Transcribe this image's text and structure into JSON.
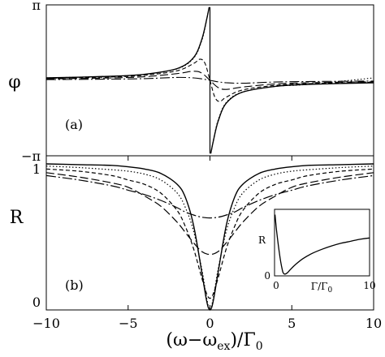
{
  "chart_data": [
    {
      "panel": "top",
      "type": "line",
      "panel_label": "(a)",
      "ylabel": "φ",
      "xlabel": "",
      "xlim": [
        -10,
        10
      ],
      "ylim": [
        -3.1416,
        3.1416
      ],
      "yticks": [
        {
          "value": 3.1416,
          "label": "π"
        },
        {
          "value": -3.1416,
          "label": "−π"
        }
      ],
      "grid": false,
      "legend": "none",
      "series": [
        {
          "style": "dotted",
          "width": 0.15,
          "x": [
            -10,
            -6,
            -4,
            -2,
            -1,
            -0.5,
            -0.25,
            -0.1,
            0.1,
            0.25,
            0.5,
            1,
            2,
            4,
            6,
            10
          ],
          "y": [
            0.1,
            0.17,
            0.25,
            0.48,
            0.92,
            1.65,
            2.36,
            2.89,
            -2.89,
            -2.36,
            -1.65,
            -0.92,
            -0.48,
            -0.25,
            -0.17,
            0.1
          ]
        },
        {
          "style": "solid",
          "width": 0.3,
          "x": [
            -10,
            -6,
            -4,
            -2,
            -1,
            -0.5,
            -0.2,
            -0.05,
            0.05,
            0.2,
            0.5,
            1,
            2,
            4,
            6,
            10
          ],
          "y": [
            0.1,
            0.17,
            0.25,
            0.49,
            0.95,
            1.7,
            2.55,
            3.05,
            -3.05,
            -2.55,
            -1.7,
            -0.95,
            -0.49,
            -0.25,
            -0.17,
            -0.1
          ]
        },
        {
          "style": "dashed",
          "width": 0.8,
          "x": [
            -10,
            -6,
            -4,
            -2,
            -1,
            -0.6,
            -0.3,
            0,
            0.3,
            0.6,
            1,
            2,
            4,
            6,
            10
          ],
          "y": [
            0.08,
            0.14,
            0.21,
            0.4,
            0.7,
            0.88,
            0.7,
            0,
            -0.7,
            -0.88,
            -0.7,
            -0.4,
            -0.21,
            -0.14,
            -0.08
          ]
        },
        {
          "style": "long-dash",
          "width": 1.6,
          "x": [
            -10,
            -6,
            -4,
            -2,
            -1,
            -0.5,
            0,
            0.5,
            1,
            2,
            4,
            6,
            10
          ],
          "y": [
            0.06,
            0.1,
            0.15,
            0.28,
            0.38,
            0.3,
            0,
            -0.3,
            -0.38,
            -0.28,
            -0.15,
            -0.1,
            -0.06
          ]
        },
        {
          "style": "dash-dot",
          "width": 3.0,
          "x": [
            -10,
            -6,
            -4,
            -2,
            -1,
            -0.5,
            0,
            0.5,
            1,
            2,
            4,
            6,
            10
          ],
          "y": [
            0.03,
            0.05,
            0.07,
            0.12,
            0.1,
            0.06,
            0,
            -0.06,
            -0.1,
            -0.12,
            -0.07,
            -0.05,
            -0.03
          ]
        }
      ]
    },
    {
      "panel": "bottom",
      "type": "line",
      "panel_label": "(b)",
      "ylabel": "R",
      "xlabel": "(ω−ω_ex)/Γ_0",
      "xlabel_main": "(ω−ω",
      "xlabel_sub1": "ex",
      "xlabel_mid": ")/Γ",
      "xlabel_sub2": "0",
      "xlim": [
        -10,
        10
      ],
      "ylim": [
        0,
        1
      ],
      "xticks": [
        -10,
        -5,
        0,
        5,
        10
      ],
      "yticks": [
        0,
        1
      ],
      "grid": false,
      "legend": "none",
      "series": [
        {
          "style": "solid",
          "x": [
            -10,
            -8,
            -6,
            -5,
            -4,
            -3,
            -2,
            -1.5,
            -1,
            -0.5,
            -0.2,
            0,
            0.2,
            0.5,
            1,
            1.5,
            2,
            3,
            4,
            5,
            6,
            8,
            10
          ],
          "y": [
            1.0,
            0.995,
            0.99,
            0.98,
            0.965,
            0.935,
            0.86,
            0.77,
            0.58,
            0.26,
            0.06,
            0.0,
            0.06,
            0.26,
            0.58,
            0.77,
            0.86,
            0.935,
            0.965,
            0.98,
            0.99,
            0.995,
            1.0
          ]
        },
        {
          "style": "dotted",
          "x": [
            -10,
            -8,
            -6,
            -5,
            -4,
            -3,
            -2,
            -1.5,
            -1,
            -0.5,
            -0.2,
            0,
            0.2,
            0.5,
            1,
            1.5,
            2,
            3,
            4,
            5,
            6,
            8,
            10
          ],
          "y": [
            0.985,
            0.975,
            0.96,
            0.95,
            0.93,
            0.89,
            0.8,
            0.7,
            0.54,
            0.28,
            0.08,
            0.0,
            0.08,
            0.28,
            0.54,
            0.7,
            0.8,
            0.89,
            0.93,
            0.95,
            0.96,
            0.975,
            0.985
          ]
        },
        {
          "style": "dashed",
          "x": [
            -10,
            -8,
            -6,
            -5,
            -4,
            -3,
            -2,
            -1.5,
            -1,
            -0.5,
            -0.2,
            0,
            0.2,
            0.5,
            1,
            1.5,
            2,
            3,
            4,
            5,
            6,
            8,
            10
          ],
          "y": [
            0.965,
            0.95,
            0.92,
            0.89,
            0.86,
            0.8,
            0.68,
            0.57,
            0.42,
            0.22,
            0.11,
            0.08,
            0.11,
            0.22,
            0.42,
            0.57,
            0.68,
            0.8,
            0.86,
            0.89,
            0.92,
            0.95,
            0.965
          ]
        },
        {
          "style": "long-dash",
          "x": [
            -10,
            -8,
            -6,
            -5,
            -4,
            -3,
            -2,
            -1.5,
            -1,
            -0.5,
            0,
            0.5,
            1,
            1.5,
            2,
            3,
            4,
            5,
            6,
            8,
            10
          ],
          "y": [
            0.94,
            0.91,
            0.87,
            0.84,
            0.78,
            0.71,
            0.6,
            0.53,
            0.46,
            0.4,
            0.38,
            0.4,
            0.46,
            0.53,
            0.6,
            0.71,
            0.78,
            0.84,
            0.87,
            0.91,
            0.94
          ]
        },
        {
          "style": "dash-dot",
          "x": [
            -10,
            -8,
            -6,
            -5,
            -4,
            -3,
            -2,
            -1.5,
            -1,
            -0.5,
            0,
            0.5,
            1,
            1.5,
            2,
            3,
            4,
            5,
            6,
            8,
            10
          ],
          "y": [
            0.92,
            0.89,
            0.85,
            0.82,
            0.79,
            0.75,
            0.7,
            0.67,
            0.65,
            0.635,
            0.63,
            0.635,
            0.65,
            0.67,
            0.7,
            0.75,
            0.79,
            0.82,
            0.85,
            0.89,
            0.92
          ]
        }
      ]
    },
    {
      "panel": "inset",
      "type": "line",
      "xlabel": "Γ/Γ_0",
      "xlabel_main": "Γ/Γ",
      "xlabel_sub": "0",
      "ylabel": "R",
      "xlim": [
        0,
        10
      ],
      "ylim": [
        0,
        1
      ],
      "xticks": [
        0,
        10
      ],
      "yticks": [
        0
      ],
      "grid": false,
      "series": [
        {
          "style": "solid",
          "x": [
            0.05,
            0.2,
            0.5,
            0.8,
            1.0,
            1.3,
            1.7,
            2.2,
            3,
            4,
            5,
            6,
            7,
            8,
            9,
            10
          ],
          "y": [
            0.92,
            0.7,
            0.35,
            0.1,
            0.03,
            0.04,
            0.1,
            0.17,
            0.26,
            0.34,
            0.4,
            0.45,
            0.49,
            0.52,
            0.55,
            0.57
          ]
        }
      ]
    }
  ]
}
